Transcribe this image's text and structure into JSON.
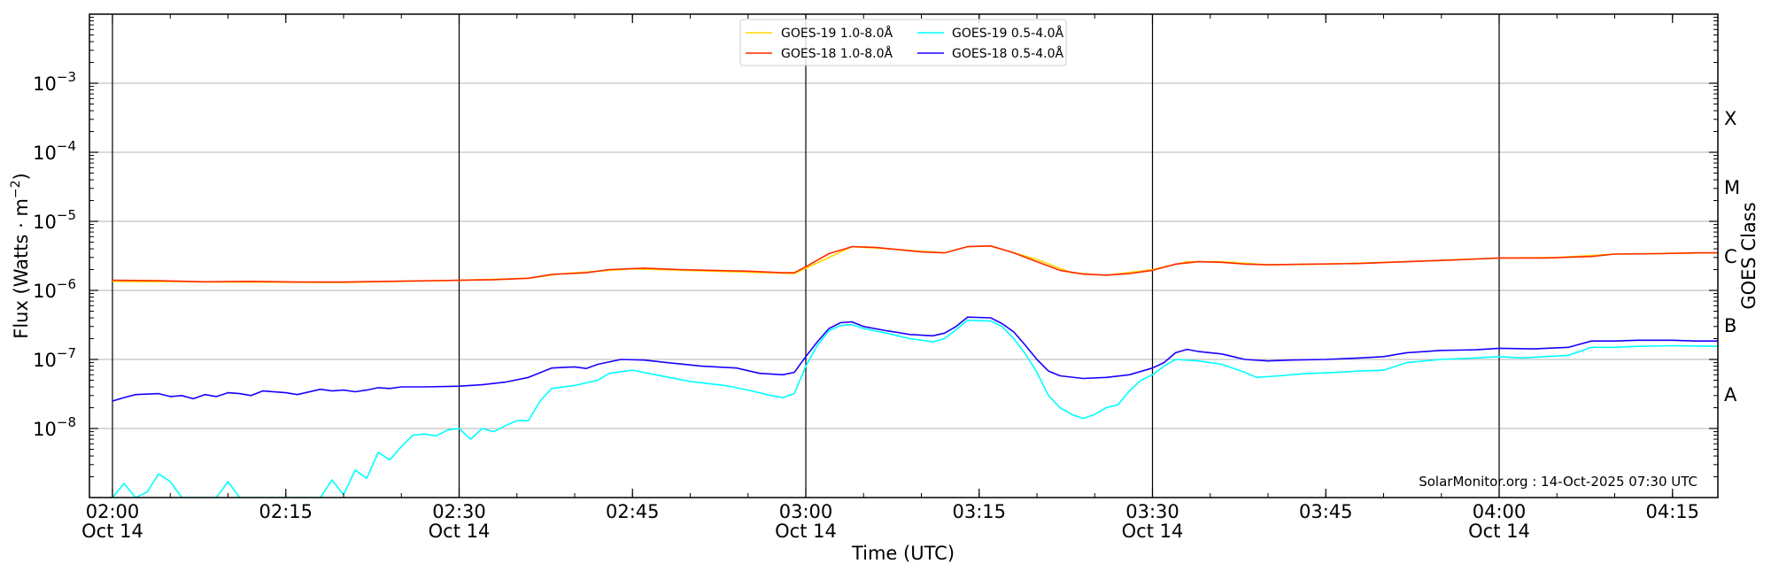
{
  "chart_data": {
    "type": "line",
    "title": "",
    "xlabel": "Time (UTC)",
    "ylabel": "Flux (Watts · m",
    "ylabel_sup": "−2",
    "ylabel_close": ")",
    "y2label": "GOES Class",
    "yscale": "log",
    "ylim": [
      1e-09,
      0.01
    ],
    "xlim": [
      "02:00",
      "04:20"
    ],
    "grid": "horizontal at decades",
    "legend_position": "top-center",
    "watermark": "SolarMonitor.org : 14-Oct-2025 07:30 UTC",
    "y_ticks": [
      {
        "value": 1e-08,
        "base": "10",
        "exp": "−8"
      },
      {
        "value": 1e-07,
        "base": "10",
        "exp": "−7"
      },
      {
        "value": 1e-06,
        "base": "10",
        "exp": "−6"
      },
      {
        "value": 1e-05,
        "base": "10",
        "exp": "−5"
      },
      {
        "value": 0.0001,
        "base": "10",
        "exp": "−4"
      },
      {
        "value": 0.001,
        "base": "10",
        "exp": "−3"
      }
    ],
    "x_ticks": [
      {
        "time": "02:00",
        "label": "02:00",
        "date": "Oct 14",
        "vline": true
      },
      {
        "time": "02:15",
        "label": "02:15",
        "date": "",
        "vline": false
      },
      {
        "time": "02:30",
        "label": "02:30",
        "date": "Oct 14",
        "vline": true
      },
      {
        "time": "02:45",
        "label": "02:45",
        "date": "",
        "vline": false
      },
      {
        "time": "03:00",
        "label": "03:00",
        "date": "Oct 14",
        "vline": true
      },
      {
        "time": "03:15",
        "label": "03:15",
        "date": "",
        "vline": false
      },
      {
        "time": "03:30",
        "label": "03:30",
        "date": "Oct 14",
        "vline": true
      },
      {
        "time": "03:45",
        "label": "03:45",
        "date": "",
        "vline": false
      },
      {
        "time": "04:00",
        "label": "04:00",
        "date": "Oct 14",
        "vline": true
      },
      {
        "time": "04:15",
        "label": "04:15",
        "date": "",
        "vline": false
      }
    ],
    "goes_classes": [
      {
        "label": "X",
        "value": 0.000316
      },
      {
        "label": "M",
        "value": 3.16e-05
      },
      {
        "label": "C",
        "value": 3.16e-06
      },
      {
        "label": "B",
        "value": 3.16e-07
      },
      {
        "label": "A",
        "value": 3.16e-08
      }
    ],
    "series": [
      {
        "name": "GOES-19 1.0-8.0Å",
        "color": "#ffd700",
        "points": [
          [
            "02:00",
            1.35e-06
          ],
          [
            "02:10",
            1.32e-06
          ],
          [
            "02:20",
            1.3e-06
          ],
          [
            "02:30",
            1.4e-06
          ],
          [
            "02:36",
            1.5e-06
          ],
          [
            "02:39",
            1.75e-06
          ],
          [
            "02:45",
            2.05e-06
          ],
          [
            "02:52",
            1.9e-06
          ],
          [
            "02:59",
            1.75e-06
          ],
          [
            "03:01",
            2.5e-06
          ],
          [
            "03:04",
            4.3e-06
          ],
          [
            "03:07",
            4e-06
          ],
          [
            "03:12",
            3.5e-06
          ],
          [
            "03:14",
            4.3e-06
          ],
          [
            "03:16",
            4.4e-06
          ],
          [
            "03:20",
            2.8e-06
          ],
          [
            "03:23",
            1.8e-06
          ],
          [
            "03:26",
            1.65e-06
          ],
          [
            "03:30",
            2e-06
          ],
          [
            "03:33",
            2.6e-06
          ],
          [
            "03:36",
            2.6e-06
          ],
          [
            "03:40",
            2.35e-06
          ],
          [
            "03:45",
            2.4e-06
          ],
          [
            "03:52",
            2.6e-06
          ],
          [
            "04:00",
            2.95e-06
          ],
          [
            "04:05",
            3e-06
          ],
          [
            "04:10",
            3.35e-06
          ],
          [
            "04:15",
            3.45e-06
          ],
          [
            "04:19",
            3.5e-06
          ]
        ]
      },
      {
        "name": "GOES-18 1.0-8.0Å",
        "color": "#ff2a00",
        "points": [
          [
            "02:00",
            1.4e-06
          ],
          [
            "02:04",
            1.38e-06
          ],
          [
            "02:08",
            1.33e-06
          ],
          [
            "02:12",
            1.35e-06
          ],
          [
            "02:16",
            1.32e-06
          ],
          [
            "02:20",
            1.32e-06
          ],
          [
            "02:25",
            1.36e-06
          ],
          [
            "02:30",
            1.4e-06
          ],
          [
            "02:33",
            1.43e-06
          ],
          [
            "02:36",
            1.5e-06
          ],
          [
            "02:38",
            1.7e-06
          ],
          [
            "02:41",
            1.8e-06
          ],
          [
            "02:43",
            2e-06
          ],
          [
            "02:46",
            2.1e-06
          ],
          [
            "02:49",
            2e-06
          ],
          [
            "02:52",
            1.95e-06
          ],
          [
            "02:55",
            1.9e-06
          ],
          [
            "02:58",
            1.8e-06
          ],
          [
            "02:59",
            1.8e-06
          ],
          [
            "03:00",
            2.2e-06
          ],
          [
            "03:02",
            3.4e-06
          ],
          [
            "03:04",
            4.3e-06
          ],
          [
            "03:06",
            4.2e-06
          ],
          [
            "03:08",
            3.9e-06
          ],
          [
            "03:10",
            3.6e-06
          ],
          [
            "03:12",
            3.5e-06
          ],
          [
            "03:14",
            4.3e-06
          ],
          [
            "03:16",
            4.4e-06
          ],
          [
            "03:18",
            3.5e-06
          ],
          [
            "03:20",
            2.6e-06
          ],
          [
            "03:22",
            1.95e-06
          ],
          [
            "03:24",
            1.72e-06
          ],
          [
            "03:26",
            1.66e-06
          ],
          [
            "03:28",
            1.75e-06
          ],
          [
            "03:30",
            1.95e-06
          ],
          [
            "03:32",
            2.4e-06
          ],
          [
            "03:34",
            2.6e-06
          ],
          [
            "03:36",
            2.55e-06
          ],
          [
            "03:38",
            2.4e-06
          ],
          [
            "03:40",
            2.35e-06
          ],
          [
            "03:44",
            2.4e-06
          ],
          [
            "03:48",
            2.45e-06
          ],
          [
            "03:52",
            2.6e-06
          ],
          [
            "03:56",
            2.75e-06
          ],
          [
            "04:00",
            2.95e-06
          ],
          [
            "04:04",
            2.95e-06
          ],
          [
            "04:08",
            3.1e-06
          ],
          [
            "04:10",
            3.35e-06
          ],
          [
            "04:14",
            3.4e-06
          ],
          [
            "04:17",
            3.5e-06
          ],
          [
            "04:19",
            3.5e-06
          ]
        ]
      },
      {
        "name": "GOES-19 0.5-4.0Å",
        "color": "#00ffff",
        "points": [
          [
            "02:00",
            1e-09
          ],
          [
            "02:01",
            1.6e-09
          ],
          [
            "02:02",
            1e-09
          ],
          [
            "02:03",
            1.2e-09
          ],
          [
            "02:04",
            2.2e-09
          ],
          [
            "02:05",
            1.7e-09
          ],
          [
            "02:06",
            1e-09
          ],
          [
            "02:09",
            1e-09
          ],
          [
            "02:10",
            1.7e-09
          ],
          [
            "02:11",
            1e-09
          ],
          [
            "02:18",
            1e-09
          ],
          [
            "02:19",
            1.8e-09
          ],
          [
            "02:20",
            1.1e-09
          ],
          [
            "02:21",
            2.5e-09
          ],
          [
            "02:22",
            1.9e-09
          ],
          [
            "02:23",
            4.5e-09
          ],
          [
            "02:24",
            3.5e-09
          ],
          [
            "02:25",
            5.5e-09
          ],
          [
            "02:26",
            8e-09
          ],
          [
            "02:27",
            8.3e-09
          ],
          [
            "02:28",
            7.8e-09
          ],
          [
            "02:29",
            9.5e-09
          ],
          [
            "02:30",
            1e-08
          ],
          [
            "02:31",
            7e-09
          ],
          [
            "02:32",
            1e-08
          ],
          [
            "02:33",
            9e-09
          ],
          [
            "02:34",
            1.1e-08
          ],
          [
            "02:35",
            1.3e-08
          ],
          [
            "02:36",
            1.3e-08
          ],
          [
            "02:37",
            2.5e-08
          ],
          [
            "02:38",
            3.8e-08
          ],
          [
            "02:40",
            4.2e-08
          ],
          [
            "02:42",
            5e-08
          ],
          [
            "02:43",
            6.3e-08
          ],
          [
            "02:45",
            7e-08
          ],
          [
            "02:47",
            6e-08
          ],
          [
            "02:50",
            4.8e-08
          ],
          [
            "02:53",
            4.2e-08
          ],
          [
            "02:55",
            3.6e-08
          ],
          [
            "02:57",
            3e-08
          ],
          [
            "02:58",
            2.8e-08
          ],
          [
            "02:59",
            3.2e-08
          ],
          [
            "03:00",
            8e-08
          ],
          [
            "03:01",
            1.6e-07
          ],
          [
            "03:02",
            2.6e-07
          ],
          [
            "03:03",
            3.1e-07
          ],
          [
            "03:04",
            3.2e-07
          ],
          [
            "03:05",
            2.8e-07
          ],
          [
            "03:07",
            2.4e-07
          ],
          [
            "03:09",
            2e-07
          ],
          [
            "03:11",
            1.8e-07
          ],
          [
            "03:12",
            2e-07
          ],
          [
            "03:13",
            2.7e-07
          ],
          [
            "03:14",
            3.7e-07
          ],
          [
            "03:16",
            3.6e-07
          ],
          [
            "03:17",
            3e-07
          ],
          [
            "03:18",
            2e-07
          ],
          [
            "03:19",
            1.2e-07
          ],
          [
            "03:20",
            6.5e-08
          ],
          [
            "03:21",
            3e-08
          ],
          [
            "03:22",
            2e-08
          ],
          [
            "03:23",
            1.6e-08
          ],
          [
            "03:24",
            1.4e-08
          ],
          [
            "03:25",
            1.6e-08
          ],
          [
            "03:26",
            2e-08
          ],
          [
            "03:27",
            2.2e-08
          ],
          [
            "03:28",
            3.5e-08
          ],
          [
            "03:29",
            5e-08
          ],
          [
            "03:30",
            6e-08
          ],
          [
            "03:31",
            8e-08
          ],
          [
            "03:32",
            1e-07
          ],
          [
            "03:34",
            9.5e-08
          ],
          [
            "03:36",
            8.5e-08
          ],
          [
            "03:38",
            6.5e-08
          ],
          [
            "03:39",
            5.5e-08
          ],
          [
            "03:41",
            5.8e-08
          ],
          [
            "03:43",
            6.2e-08
          ],
          [
            "03:46",
            6.5e-08
          ],
          [
            "03:48",
            6.8e-08
          ],
          [
            "03:50",
            7e-08
          ],
          [
            "03:52",
            9e-08
          ],
          [
            "03:55",
            1e-07
          ],
          [
            "03:58",
            1.05e-07
          ],
          [
            "04:00",
            1.1e-07
          ],
          [
            "04:02",
            1.05e-07
          ],
          [
            "04:04",
            1.1e-07
          ],
          [
            "04:06",
            1.15e-07
          ],
          [
            "04:08",
            1.5e-07
          ],
          [
            "04:10",
            1.5e-07
          ],
          [
            "04:12",
            1.55e-07
          ],
          [
            "04:15",
            1.58e-07
          ],
          [
            "04:19",
            1.55e-07
          ]
        ]
      },
      {
        "name": "GOES-18 0.5-4.0Å",
        "color": "#1a00ff",
        "points": [
          [
            "02:00",
            2.5e-08
          ],
          [
            "02:01",
            2.8e-08
          ],
          [
            "02:02",
            3.1e-08
          ],
          [
            "02:04",
            3.2e-08
          ],
          [
            "02:05",
            2.9e-08
          ],
          [
            "02:06",
            3e-08
          ],
          [
            "02:07",
            2.7e-08
          ],
          [
            "02:08",
            3.1e-08
          ],
          [
            "02:09",
            2.9e-08
          ],
          [
            "02:10",
            3.3e-08
          ],
          [
            "02:11",
            3.2e-08
          ],
          [
            "02:12",
            3e-08
          ],
          [
            "02:13",
            3.5e-08
          ],
          [
            "02:15",
            3.3e-08
          ],
          [
            "02:16",
            3.1e-08
          ],
          [
            "02:18",
            3.7e-08
          ],
          [
            "02:19",
            3.5e-08
          ],
          [
            "02:20",
            3.6e-08
          ],
          [
            "02:21",
            3.4e-08
          ],
          [
            "02:22",
            3.6e-08
          ],
          [
            "02:23",
            3.9e-08
          ],
          [
            "02:24",
            3.8e-08
          ],
          [
            "02:25",
            4e-08
          ],
          [
            "02:27",
            4e-08
          ],
          [
            "02:30",
            4.1e-08
          ],
          [
            "02:32",
            4.3e-08
          ],
          [
            "02:34",
            4.7e-08
          ],
          [
            "02:36",
            5.5e-08
          ],
          [
            "02:38",
            7.5e-08
          ],
          [
            "02:40",
            7.8e-08
          ],
          [
            "02:41",
            7.4e-08
          ],
          [
            "02:42",
            8.5e-08
          ],
          [
            "02:44",
            1e-07
          ],
          [
            "02:46",
            9.8e-08
          ],
          [
            "02:48",
            9e-08
          ],
          [
            "02:51",
            8e-08
          ],
          [
            "02:54",
            7.5e-08
          ],
          [
            "02:56",
            6.3e-08
          ],
          [
            "02:58",
            6e-08
          ],
          [
            "02:59",
            6.5e-08
          ],
          [
            "03:00",
            1.1e-07
          ],
          [
            "03:01",
            1.8e-07
          ],
          [
            "03:02",
            2.8e-07
          ],
          [
            "03:03",
            3.4e-07
          ],
          [
            "03:04",
            3.5e-07
          ],
          [
            "03:05",
            3e-07
          ],
          [
            "03:07",
            2.6e-07
          ],
          [
            "03:09",
            2.3e-07
          ],
          [
            "03:11",
            2.2e-07
          ],
          [
            "03:12",
            2.4e-07
          ],
          [
            "03:13",
            3e-07
          ],
          [
            "03:14",
            4.1e-07
          ],
          [
            "03:16",
            4e-07
          ],
          [
            "03:17",
            3.3e-07
          ],
          [
            "03:18",
            2.5e-07
          ],
          [
            "03:19",
            1.6e-07
          ],
          [
            "03:20",
            1e-07
          ],
          [
            "03:21",
            6.8e-08
          ],
          [
            "03:22",
            5.8e-08
          ],
          [
            "03:24",
            5.3e-08
          ],
          [
            "03:26",
            5.5e-08
          ],
          [
            "03:28",
            6e-08
          ],
          [
            "03:30",
            7.5e-08
          ],
          [
            "03:31",
            9e-08
          ],
          [
            "03:32",
            1.25e-07
          ],
          [
            "03:33",
            1.4e-07
          ],
          [
            "03:34",
            1.3e-07
          ],
          [
            "03:36",
            1.2e-07
          ],
          [
            "03:38",
            1e-07
          ],
          [
            "03:40",
            9.5e-08
          ],
          [
            "03:42",
            9.8e-08
          ],
          [
            "03:45",
            1e-07
          ],
          [
            "03:48",
            1.05e-07
          ],
          [
            "03:50",
            1.1e-07
          ],
          [
            "03:52",
            1.25e-07
          ],
          [
            "03:55",
            1.35e-07
          ],
          [
            "03:58",
            1.38e-07
          ],
          [
            "04:00",
            1.45e-07
          ],
          [
            "04:03",
            1.42e-07
          ],
          [
            "04:06",
            1.5e-07
          ],
          [
            "04:08",
            1.85e-07
          ],
          [
            "04:10",
            1.85e-07
          ],
          [
            "04:12",
            1.9e-07
          ],
          [
            "04:15",
            1.9e-07
          ],
          [
            "04:17",
            1.85e-07
          ],
          [
            "04:19",
            1.85e-07
          ]
        ]
      }
    ]
  }
}
